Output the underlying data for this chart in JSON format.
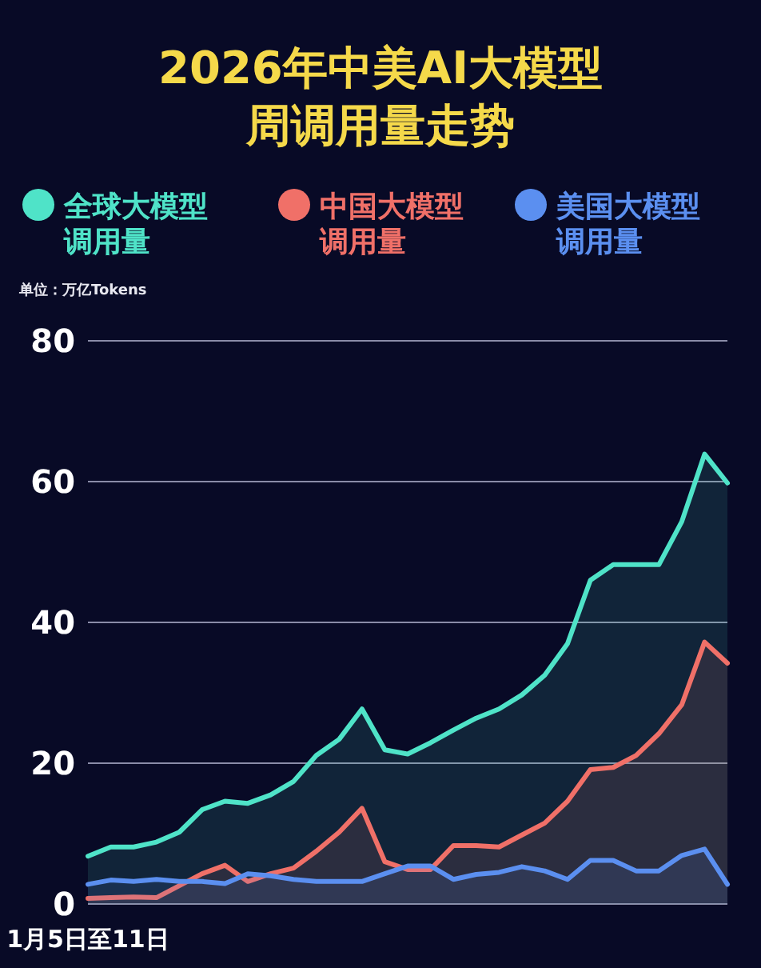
{
  "chart_data": {
    "type": "area",
    "title": "2026年中美AI大模型周调用量走势",
    "ylabel": "单位：万亿Tokens",
    "categories": [
      "1月5日至11日",
      null,
      null,
      null,
      null,
      null,
      null,
      null,
      null,
      null,
      null,
      null,
      null,
      null,
      null,
      null,
      null,
      null,
      null,
      null,
      null,
      null,
      null,
      null,
      null,
      null,
      null,
      null,
      null
    ],
    "series": [
      {
        "name": "全球大模型调用量",
        "color": "#4fe3c8",
        "values": [
          6.8,
          8.1,
          8.1,
          8.8,
          10.2,
          13.4,
          14.6,
          14.3,
          15.5,
          17.4,
          21.1,
          23.4,
          27.7,
          21.9,
          21.3,
          22.9,
          24.7,
          26.4,
          27.7,
          29.7,
          32.5,
          37.0,
          46.0,
          48.2,
          48.2,
          48.2,
          54.3,
          63.9,
          59.8
        ]
      },
      {
        "name": "中国大模型调用量",
        "color": "#f07068",
        "values": [
          0.8,
          0.9,
          1.0,
          0.9,
          2.6,
          4.3,
          5.5,
          3.2,
          4.3,
          5.1,
          7.5,
          10.2,
          13.6,
          6.0,
          4.9,
          4.9,
          8.3,
          8.3,
          8.1,
          9.8,
          11.5,
          14.6,
          19.1,
          19.4,
          21.1,
          24.2,
          28.3,
          37.2,
          34.2
        ]
      },
      {
        "name": "美国大模型调用量",
        "color": "#5b8ff0",
        "values": [
          2.8,
          3.4,
          3.2,
          3.5,
          3.2,
          3.2,
          2.9,
          4.3,
          4.0,
          3.5,
          3.2,
          3.2,
          3.2,
          4.3,
          5.4,
          5.4,
          3.5,
          4.2,
          4.5,
          5.3,
          4.7,
          3.5,
          6.2,
          6.2,
          4.7,
          4.7,
          6.9,
          7.8,
          2.8
        ]
      }
    ],
    "ylim": [
      0,
      80
    ],
    "yticks": [
      0,
      20,
      40,
      60,
      80
    ],
    "grid": "y",
    "legend": "top"
  }
}
